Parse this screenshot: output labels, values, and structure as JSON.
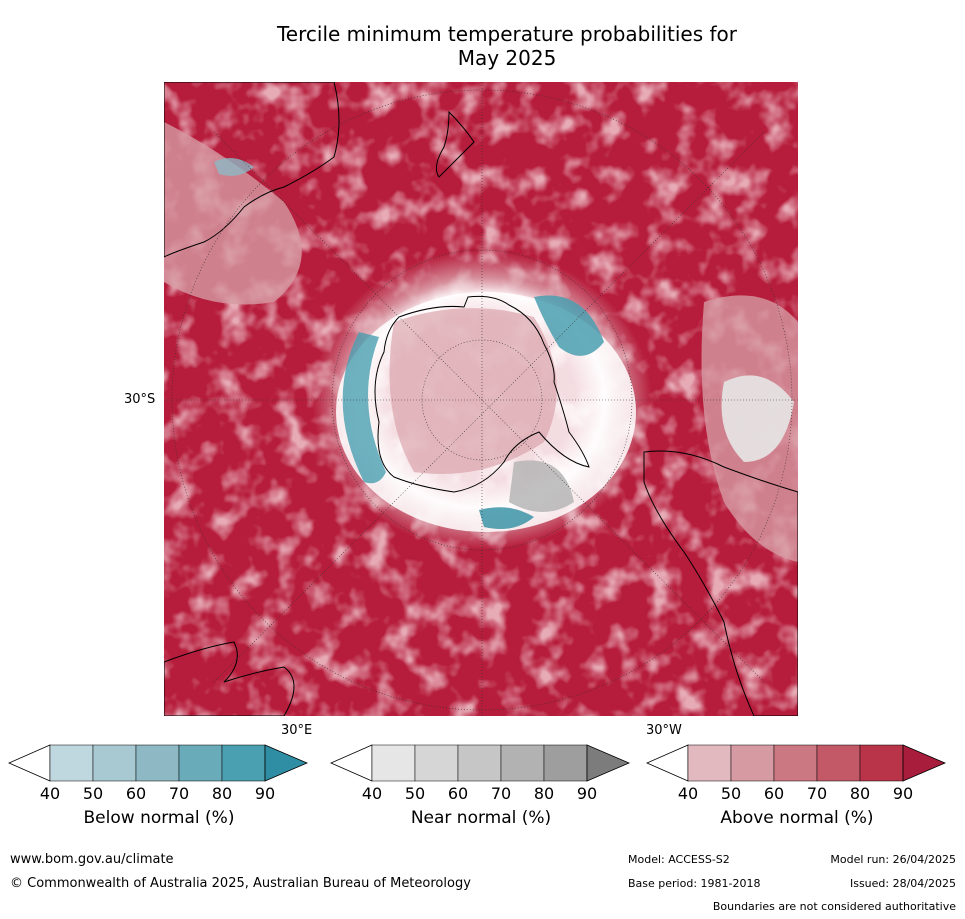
{
  "title_line1": "Tercile minimum temperature probabilities for",
  "title_line2": "May 2025",
  "map": {
    "lat_label": "30°S",
    "lon_label_left": "30°E",
    "lon_label_right": "30°W"
  },
  "colorbars": [
    {
      "caption": "Below normal (%)",
      "ticks": [
        "40",
        "50",
        "60",
        "70",
        "80",
        "90"
      ],
      "colors": [
        "#ffffff",
        "#bfd7de",
        "#a8c9d1",
        "#8db8c4",
        "#6aabb9",
        "#4a9fb0",
        "#2f8ea3"
      ]
    },
    {
      "caption": "Near normal (%)",
      "ticks": [
        "40",
        "50",
        "60",
        "70",
        "80",
        "90"
      ],
      "colors": [
        "#ffffff",
        "#e6e6e6",
        "#d6d6d6",
        "#c6c6c6",
        "#b2b2b2",
        "#9e9e9e",
        "#7c7c7c"
      ]
    },
    {
      "caption": "Above normal (%)",
      "ticks": [
        "40",
        "50",
        "60",
        "70",
        "80",
        "90"
      ],
      "colors": [
        "#ffffff",
        "#e2b9bf",
        "#d69aa2",
        "#cc7882",
        "#c35866",
        "#b93349",
        "#a81d3c"
      ]
    }
  ],
  "footer": {
    "website": "www.bom.gov.au/climate",
    "copyright": "© Commonwealth of Australia 2025, Australian Bureau of Meteorology",
    "model": "Model: ACCESS-S2",
    "model_run": "Model run: 26/04/2025",
    "base_period": "Base period: 1981-2018",
    "issued": "Issued: 28/04/2025",
    "disclaimer": "Boundaries are not considered authoritative"
  }
}
